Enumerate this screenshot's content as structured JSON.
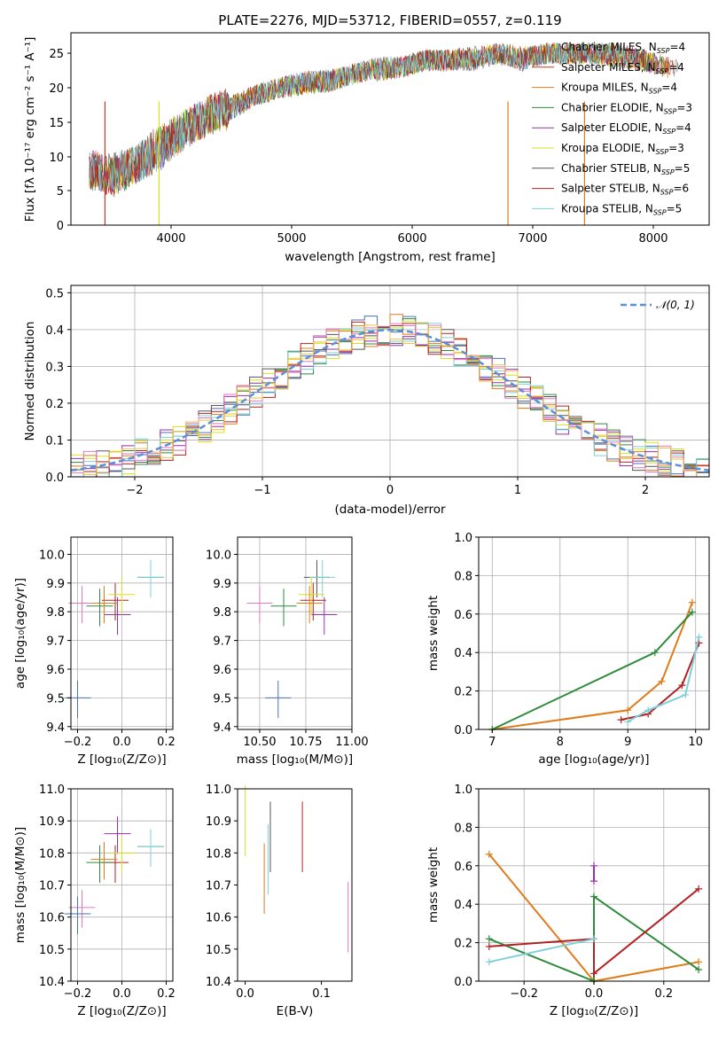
{
  "title": "PLATE=2276, MJD=53712, FIBERID=0557, z=0.119",
  "model_colors": [
    "#4c72b0",
    "#c0392b",
    "#e07b1a",
    "#2e8b3c",
    "#9b2fae",
    "#d9e021",
    "#555555",
    "#b22222",
    "#7fd0d8"
  ],
  "spectrum": {
    "xlabel": "wavelength [Angstrom, rest frame]",
    "ylabel": "Flux [fλ 10⁻¹⁷ erg cm⁻² s⁻¹ A⁻¹]",
    "xticks": [
      "4000",
      "5000",
      "6000",
      "7000",
      "8000"
    ],
    "yticks": [
      "0",
      "5",
      "10",
      "15",
      "20",
      "25"
    ],
    "legend": [
      {
        "label": "Chabrier MILES, N",
        "sub": "SSP",
        "n": "=4",
        "color": "#8a8a8a"
      },
      {
        "label": "Salpeter MILES, N",
        "sub": "SSP",
        "n": "=4",
        "color": "#c0392b"
      },
      {
        "label": "Kroupa MILES, N",
        "sub": "SSP",
        "n": "=4",
        "color": "#e07b1a"
      },
      {
        "label": "Chabrier ELODIE, N",
        "sub": "SSP",
        "n": "=3",
        "color": "#2e8b3c"
      },
      {
        "label": "Salpeter ELODIE, N",
        "sub": "SSP",
        "n": "=4",
        "color": "#9b2fae"
      },
      {
        "label": "Kroupa ELODIE, N",
        "sub": "SSP",
        "n": "=3",
        "color": "#d9e021"
      },
      {
        "label": "Chabrier STELIB, N",
        "sub": "SSP",
        "n": "=5",
        "color": "#555555"
      },
      {
        "label": "Salpeter STELIB, N",
        "sub": "SSP",
        "n": "=6",
        "color": "#b22222"
      },
      {
        "label": "Kroupa STELIB, N",
        "sub": "SSP",
        "n": "=5",
        "color": "#7fd0d8"
      }
    ]
  },
  "histogram": {
    "xlabel": "(data-model)/error",
    "ylabel": "Normed distribution",
    "xticks": [
      "−2",
      "−1",
      "0",
      "1",
      "2"
    ],
    "yticks": [
      "0.0",
      "0.1",
      "0.2",
      "0.3",
      "0.4",
      "0.5"
    ],
    "legend": "𝒩(0, 1)"
  },
  "panels": {
    "age_z": {
      "ylabel": "age  [log₁₀(age/yr)]",
      "xlabel": "Z [log₁₀(Z/Z⊙)]",
      "xticks": [
        "−0.2",
        "0.0",
        "0.2"
      ],
      "yticks": [
        "9.4",
        "9.5",
        "9.6",
        "9.7",
        "9.8",
        "9.9",
        "10.0"
      ]
    },
    "age_mass": {
      "xlabel": "mass [log₁₀(M/M⊙)]",
      "xticks": [
        "10.50",
        "10.75",
        "11.00"
      ],
      "yticks": [
        "9.4",
        "9.5",
        "9.6",
        "9.7",
        "9.8",
        "9.9",
        "10.0"
      ]
    },
    "mw_age": {
      "ylabel": "mass weight",
      "xlabel": "age  [log₁₀(age/yr)]",
      "xticks": [
        "7",
        "8",
        "9",
        "10"
      ],
      "yticks": [
        "0.0",
        "0.2",
        "0.4",
        "0.6",
        "0.8",
        "1.0"
      ]
    },
    "mass_z": {
      "ylabel": "mass [log₁₀(M/M⊙)]",
      "xlabel": "Z [log₁₀(Z/Z⊙)]",
      "xticks": [
        "−0.2",
        "0.0",
        "0.2"
      ],
      "yticks": [
        "10.4",
        "10.5",
        "10.6",
        "10.7",
        "10.8",
        "10.9",
        "11.0"
      ]
    },
    "mass_ebv": {
      "xlabel": "E(B-V)",
      "xticks": [
        "0.0",
        "0.1"
      ],
      "yticks": [
        "10.4",
        "10.5",
        "10.6",
        "10.7",
        "10.8",
        "10.9",
        "11.0"
      ]
    },
    "mw_z": {
      "ylabel": "mass weight",
      "xlabel": "Z [log₁₀(Z/Z⊙)]",
      "xticks": [
        "−0.2",
        "0.0",
        "0.2"
      ],
      "yticks": [
        "0.0",
        "0.2",
        "0.4",
        "0.6",
        "0.8",
        "1.0"
      ]
    }
  },
  "chart_data": [
    {
      "type": "line",
      "title": "PLATE=2276, MJD=53712, FIBERID=0557, z=0.119",
      "xlabel": "wavelength [Angstrom, rest frame]",
      "ylabel": "Flux [fλ 10⁻¹⁷ erg cm⁻² s⁻¹ A⁻¹]",
      "xlim": [
        3200,
        8450
      ],
      "ylim": [
        0,
        28
      ],
      "x": [
        3350,
        3500,
        3700,
        3900,
        4100,
        4300,
        4500,
        4700,
        4900,
        5100,
        5300,
        5500,
        5700,
        5900,
        6100,
        6300,
        6500,
        6700,
        6900,
        7100,
        7300,
        7500,
        7700,
        7900,
        8100
      ],
      "series": [
        {
          "name": "Chabrier MILES, N_SSP=4",
          "values": [
            8,
            7.5,
            9,
            11,
            14,
            16,
            17,
            19,
            20,
            21,
            21,
            22,
            23,
            23,
            24,
            24,
            24,
            25,
            24,
            25,
            25,
            25,
            25,
            24,
            23
          ]
        },
        {
          "name": "Salpeter STELIB, N_SSP=6",
          "values": [
            8,
            7,
            9,
            12,
            14,
            16,
            17.5,
            19,
            20,
            20.5,
            21,
            22,
            22.5,
            23,
            24,
            24,
            24.5,
            25,
            24.5,
            25,
            25,
            25,
            24.5,
            24,
            23
          ]
        }
      ]
    },
    {
      "type": "bar",
      "xlabel": "(data-model)/error",
      "ylabel": "Normed distribution",
      "xlim": [
        -2.5,
        2.5
      ],
      "ylim": [
        0,
        0.52
      ],
      "categories": [
        "-2.4",
        "-2.2",
        "-2.0",
        "-1.8",
        "-1.6",
        "-1.4",
        "-1.2",
        "-1.0",
        "-0.8",
        "-0.6",
        "-0.4",
        "-0.2",
        "0.0",
        "0.2",
        "0.4",
        "0.6",
        "0.8",
        "1.0",
        "1.2",
        "1.4",
        "1.6",
        "1.8",
        "2.0",
        "2.2",
        "2.4"
      ],
      "series": [
        {
          "name": "histogram",
          "values": [
            0.03,
            0.04,
            0.06,
            0.08,
            0.11,
            0.15,
            0.19,
            0.24,
            0.3,
            0.34,
            0.37,
            0.39,
            0.42,
            0.4,
            0.37,
            0.33,
            0.28,
            0.22,
            0.17,
            0.13,
            0.1,
            0.07,
            0.05,
            0.03,
            0.02
          ]
        },
        {
          "name": "N(0,1)",
          "values": [
            0.018,
            0.035,
            0.054,
            0.079,
            0.111,
            0.15,
            0.194,
            0.242,
            0.29,
            0.333,
            0.368,
            0.391,
            0.399,
            0.391,
            0.368,
            0.333,
            0.29,
            0.242,
            0.194,
            0.15,
            0.111,
            0.079,
            0.054,
            0.035,
            0.018
          ]
        }
      ]
    },
    {
      "type": "scatter",
      "xlabel": "Z [log₁₀(Z/Z⊙)]",
      "ylabel": "age  [log₁₀(age/yr)]",
      "xlim": [
        -0.23,
        0.23
      ],
      "ylim": [
        9.39,
        10.06
      ],
      "points": [
        [
          0.13,
          9.92
        ],
        [
          0.13,
          9.92
        ],
        [
          -0.18,
          9.83
        ],
        [
          -0.03,
          9.84
        ],
        [
          -0.02,
          9.79
        ],
        [
          0.0,
          9.86
        ],
        [
          -0.1,
          9.82
        ],
        [
          -0.08,
          9.83
        ],
        [
          -0.2,
          9.5
        ]
      ]
    },
    {
      "type": "scatter",
      "xlabel": "mass [log₁₀(M/M⊙)]",
      "xlim": [
        10.38,
        11.0
      ],
      "ylim": [
        9.39,
        10.06
      ],
      "points": [
        [
          10.81,
          9.92
        ],
        [
          10.84,
          9.92
        ],
        [
          10.5,
          9.83
        ],
        [
          10.79,
          9.84
        ],
        [
          10.85,
          9.79
        ],
        [
          10.78,
          9.86
        ],
        [
          10.63,
          9.82
        ],
        [
          10.77,
          9.83
        ],
        [
          10.6,
          9.5
        ]
      ]
    },
    {
      "type": "line",
      "xlabel": "age  [log₁₀(age/yr)]",
      "ylabel": "mass weight",
      "xlim": [
        6.8,
        10.2
      ],
      "ylim": [
        0,
        1
      ],
      "series": [
        {
          "name": "Chabrier MILES",
          "x": [
            7.0,
            9.0,
            9.5,
            9.95
          ],
          "values": [
            0.0,
            0.1,
            0.25,
            0.66
          ]
        },
        {
          "name": "Chabrier ELODIE",
          "x": [
            7.0,
            9.4,
            9.95
          ],
          "values": [
            0.0,
            0.4,
            0.61
          ]
        },
        {
          "name": "Salpeter STELIB",
          "x": [
            8.9,
            9.3,
            9.8,
            10.05
          ],
          "values": [
            0.05,
            0.08,
            0.23,
            0.45
          ]
        },
        {
          "name": "Kroupa STELIB",
          "x": [
            9.0,
            9.3,
            9.85,
            10.05
          ],
          "values": [
            0.04,
            0.1,
            0.18,
            0.48
          ]
        }
      ]
    },
    {
      "type": "scatter",
      "xlabel": "Z [log₁₀(Z/Z⊙)]",
      "ylabel": "mass [log₁₀(M/M⊙)]",
      "xlim": [
        -0.23,
        0.23
      ],
      "ylim": [
        10.4,
        11.0
      ],
      "points": [
        [
          0.13,
          10.82
        ],
        [
          0.13,
          10.82
        ],
        [
          -0.18,
          10.63
        ],
        [
          -0.03,
          10.77
        ],
        [
          -0.02,
          10.86
        ],
        [
          0.0,
          10.8
        ],
        [
          -0.1,
          10.77
        ],
        [
          -0.08,
          10.78
        ],
        [
          -0.2,
          10.61
        ]
      ]
    },
    {
      "type": "scatter",
      "xlabel": "E(B-V)",
      "xlim": [
        -0.01,
        0.14
      ],
      "ylim": [
        10.4,
        11.0
      ],
      "points": [
        [
          0.03,
          10.78
        ],
        [
          0.075,
          10.85
        ],
        [
          0.0,
          10.9
        ],
        [
          0.025,
          10.72
        ],
        [
          0.033,
          10.85
        ],
        [
          0.135,
          10.6
        ]
      ]
    },
    {
      "type": "line",
      "xlabel": "Z [log₁₀(Z/Z⊙)]",
      "ylabel": "mass weight",
      "xlim": [
        -0.33,
        0.33
      ],
      "ylim": [
        0,
        1
      ],
      "series": [
        {
          "name": "Chabrier MILES",
          "x": [
            -0.3,
            0.0,
            0.3
          ],
          "values": [
            0.66,
            0.0,
            0.1
          ]
        },
        {
          "name": "Salpeter STELIB",
          "x": [
            -0.3,
            0.0,
            0.0,
            0.3
          ],
          "values": [
            0.22,
            0.0,
            0.44,
            0.06
          ]
        },
        {
          "name": "Kroupa STELIB",
          "x": [
            -0.3,
            0.0,
            0.0,
            0.3
          ],
          "values": [
            0.18,
            0.22,
            0.04,
            0.48
          ]
        },
        {
          "name": "Salpeter ELODIE",
          "x": [
            -0.3,
            0.0
          ],
          "values": [
            0.1,
            0.22
          ]
        },
        {
          "name": "Kroupa ELODIE",
          "x": [
            0.0,
            0.0
          ],
          "values": [
            0.6,
            0.52
          ]
        }
      ]
    }
  ]
}
